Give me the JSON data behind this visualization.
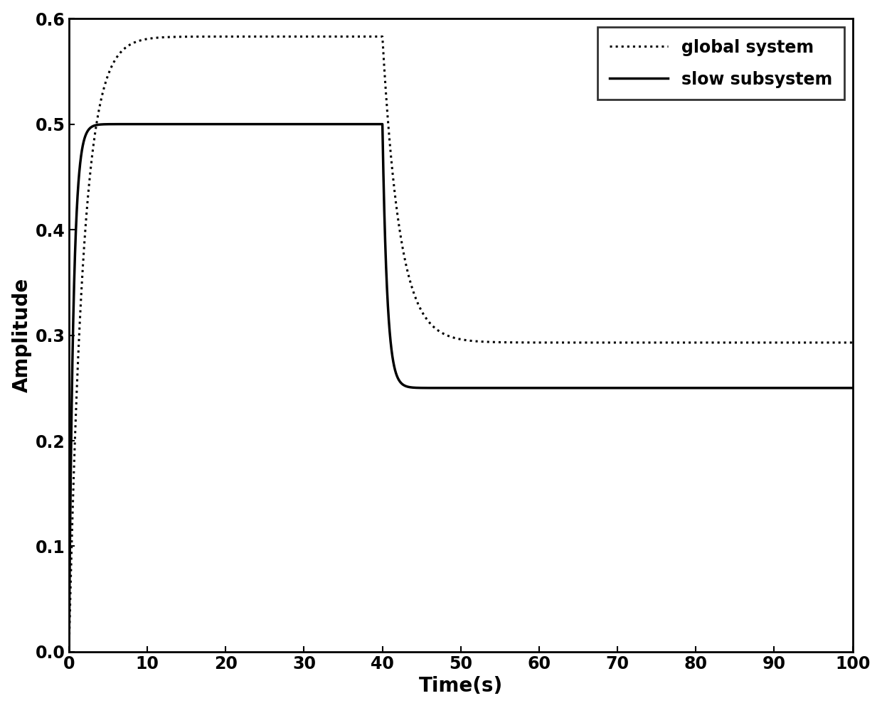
{
  "xlabel": "Time(s)",
  "ylabel": "Amplitude",
  "xlim": [
    0,
    100
  ],
  "ylim": [
    0,
    0.6
  ],
  "xticks": [
    0,
    10,
    20,
    30,
    40,
    50,
    60,
    70,
    80,
    90,
    100
  ],
  "yticks": [
    0,
    0.1,
    0.2,
    0.3,
    0.4,
    0.5,
    0.6
  ],
  "legend_labels": [
    "global system",
    "slow subsystem"
  ],
  "line_color": "#000000",
  "background_color": "#ffffff",
  "slow_tau_rise": 0.55,
  "slow_steady1": 0.5,
  "slow_fault_time": 40.0,
  "slow_steady2": 0.25,
  "slow_tau_drop": 0.6,
  "global_tau_rise": 1.8,
  "global_peak": 0.583,
  "global_fault_time": 40.0,
  "global_tau_drop": 2.2,
  "global_steady2": 0.293
}
